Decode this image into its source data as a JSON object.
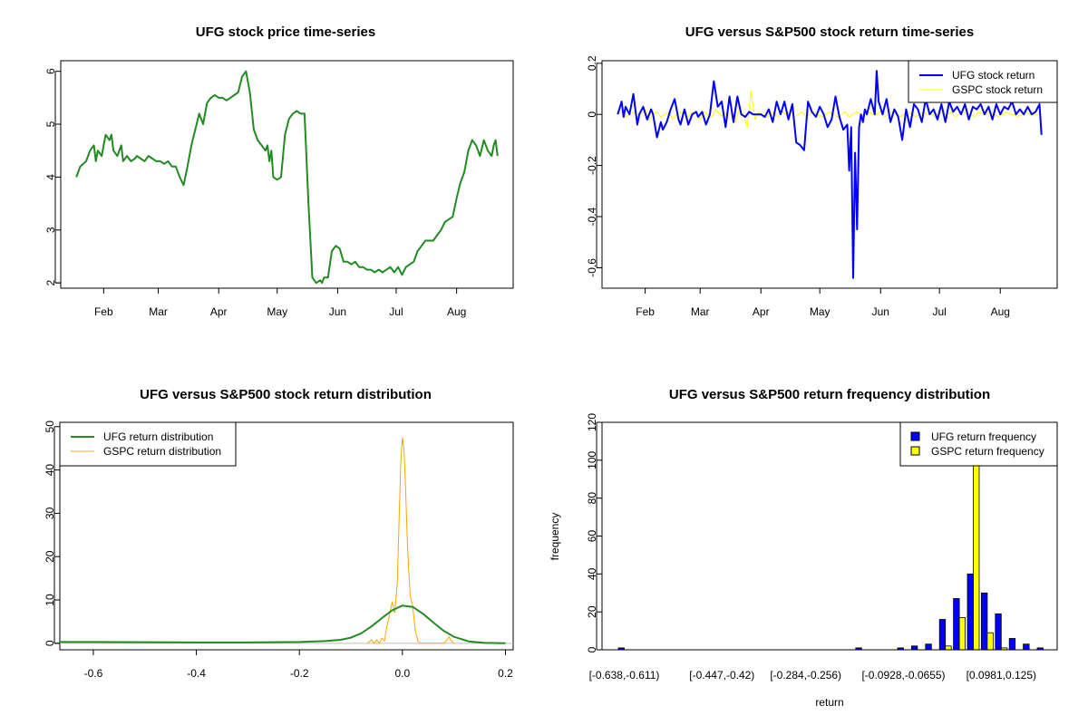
{
  "chart_data": [
    {
      "type": "line",
      "title": "UFG stock price time-series",
      "xlabel": "",
      "ylabel": "",
      "x_ticks": [
        "Feb",
        "Mar",
        "Apr",
        "May",
        "Jun",
        "Jul",
        "Aug"
      ],
      "x_tick_days": [
        31,
        59,
        90,
        120,
        151,
        181,
        212
      ],
      "xlim": [
        9,
        241
      ],
      "ylim": [
        1.9,
        6.2
      ],
      "y_ticks": [
        2,
        3,
        4,
        5,
        6
      ],
      "series": [
        {
          "name": "UFG",
          "color": "#228b22",
          "x": [
            17,
            19,
            22,
            24,
            26,
            27,
            28,
            30,
            32,
            34,
            35,
            36,
            38,
            40,
            41,
            43,
            45,
            47,
            48,
            50,
            52,
            54,
            56,
            58,
            60,
            62,
            64,
            66,
            68,
            70,
            72,
            74,
            76,
            78,
            80,
            82,
            84,
            86,
            88,
            90,
            92,
            94,
            96,
            98,
            100,
            102,
            104,
            106,
            108,
            110,
            112,
            114,
            115,
            116,
            117,
            118,
            120,
            122,
            124,
            126,
            128,
            130,
            132,
            134,
            136,
            138,
            140,
            142,
            143,
            144,
            146,
            148,
            150,
            152,
            154,
            156,
            158,
            160,
            162,
            164,
            166,
            168,
            170,
            172,
            174,
            176,
            178,
            180,
            182,
            184,
            186,
            188,
            190,
            192,
            194,
            196,
            198,
            200,
            202,
            204,
            206,
            208,
            210,
            212,
            214,
            216,
            218,
            220,
            222,
            224,
            226,
            228,
            230,
            231,
            232,
            233
          ],
          "y": [
            4.0,
            4.2,
            4.3,
            4.5,
            4.6,
            4.3,
            4.5,
            4.4,
            4.8,
            4.7,
            4.8,
            4.5,
            4.4,
            4.6,
            4.3,
            4.4,
            4.3,
            4.35,
            4.4,
            4.35,
            4.3,
            4.4,
            4.35,
            4.3,
            4.3,
            4.25,
            4.3,
            4.2,
            4.2,
            4.0,
            3.85,
            4.2,
            4.6,
            4.9,
            5.2,
            5.0,
            5.4,
            5.5,
            5.55,
            5.5,
            5.5,
            5.45,
            5.5,
            5.55,
            5.6,
            5.9,
            6.0,
            5.6,
            4.9,
            4.7,
            4.6,
            4.5,
            4.6,
            4.3,
            4.5,
            4.0,
            3.95,
            4.0,
            4.8,
            5.1,
            5.2,
            5.25,
            5.2,
            5.2,
            3.5,
            2.1,
            2.0,
            2.05,
            2.0,
            2.1,
            2.1,
            2.6,
            2.7,
            2.65,
            2.4,
            2.4,
            2.35,
            2.4,
            2.3,
            2.3,
            2.25,
            2.25,
            2.2,
            2.25,
            2.2,
            2.25,
            2.3,
            2.2,
            2.3,
            2.15,
            2.3,
            2.35,
            2.4,
            2.6,
            2.7,
            2.8,
            2.8,
            2.8,
            2.9,
            3.0,
            3.15,
            3.2,
            3.25,
            3.6,
            3.9,
            4.1,
            4.5,
            4.7,
            4.6,
            4.4,
            4.7,
            4.5,
            4.4,
            4.6,
            4.7,
            4.4
          ]
        }
      ]
    },
    {
      "type": "line",
      "title": "UFG versus S&P500 stock return time-series",
      "xlabel": "",
      "ylabel": "",
      "x_ticks": [
        "Feb",
        "Mar",
        "Apr",
        "May",
        "Jun",
        "Jul",
        "Aug"
      ],
      "x_tick_days": [
        31,
        59,
        90,
        120,
        151,
        181,
        212
      ],
      "xlim": [
        9,
        241
      ],
      "ylim": [
        -0.68,
        0.21
      ],
      "y_ticks": [
        -0.6,
        -0.4,
        -0.2,
        0.0,
        0.2
      ],
      "legend": [
        "UFG stock return",
        "GSPC stock return"
      ],
      "series": [
        {
          "name": "UFG stock return",
          "color": "#0000ff",
          "x": [
            17,
            19,
            20,
            21,
            23,
            25,
            27,
            28,
            30,
            32,
            34,
            35,
            37,
            39,
            40,
            42,
            44,
            46,
            48,
            49,
            51,
            53,
            55,
            57,
            58,
            60,
            62,
            64,
            66,
            68,
            70,
            72,
            74,
            76,
            78,
            80,
            82,
            84,
            86,
            88,
            90,
            92,
            94,
            96,
            98,
            100,
            102,
            104,
            106,
            108,
            110,
            112,
            114,
            116,
            118,
            120,
            122,
            124,
            126,
            128,
            130,
            132,
            134,
            135,
            136,
            137,
            138,
            139,
            140,
            141,
            142,
            143,
            144,
            146,
            148,
            149,
            150,
            152,
            154,
            156,
            158,
            160,
            162,
            164,
            166,
            168,
            170,
            172,
            174,
            176,
            178,
            180,
            182,
            184,
            186,
            188,
            190,
            192,
            194,
            196,
            198,
            200,
            202,
            204,
            206,
            208,
            210,
            212,
            214,
            216,
            218,
            220,
            222,
            224,
            226,
            228,
            230,
            232,
            233
          ],
          "y": [
            0.0,
            0.05,
            -0.01,
            0.03,
            0.0,
            0.08,
            -0.04,
            0.0,
            0.03,
            -0.02,
            0.02,
            0.0,
            -0.09,
            -0.03,
            -0.06,
            -0.03,
            0.02,
            0.06,
            -0.02,
            -0.04,
            0.02,
            -0.04,
            0.0,
            0.01,
            -0.01,
            0.01,
            -0.04,
            0.0,
            0.13,
            0.03,
            0.05,
            -0.05,
            0.07,
            -0.03,
            0.07,
            0.0,
            -0.01,
            0.01,
            0.0,
            0.0,
            0.0,
            -0.01,
            0.02,
            -0.03,
            0.05,
            0.0,
            0.05,
            -0.02,
            0.04,
            -0.11,
            -0.12,
            -0.14,
            0.05,
            0.01,
            -0.01,
            0.03,
            0.0,
            -0.05,
            -0.02,
            0.07,
            -0.01,
            -0.06,
            -0.04,
            -0.22,
            -0.05,
            -0.64,
            -0.15,
            -0.45,
            -0.05,
            0.0,
            -0.03,
            0.02,
            0.0,
            0.06,
            0.0,
            0.17,
            0.05,
            0.0,
            0.06,
            -0.03,
            0.02,
            -0.01,
            -0.1,
            0.02,
            -0.05,
            0.04,
            0.02,
            -0.03,
            0.06,
            0.0,
            0.02,
            -0.02,
            0.04,
            -0.03,
            0.05,
            0.01,
            0.03,
            0.0,
            0.04,
            -0.02,
            0.03,
            0.02,
            0.04,
            0.0,
            0.03,
            -0.02,
            0.04,
            0.0,
            0.03,
            0.02,
            0.05,
            0.0,
            0.02,
            0.0,
            0.03,
            0.0,
            0.01,
            0.04,
            -0.08
          ]
        },
        {
          "name": "GSPC stock return",
          "color": "#ffff00",
          "x": [
            17,
            19,
            21,
            23,
            25,
            27,
            29,
            31,
            33,
            35,
            37,
            39,
            41,
            43,
            45,
            47,
            49,
            51,
            53,
            55,
            57,
            59,
            61,
            63,
            65,
            67,
            69,
            71,
            73,
            75,
            77,
            79,
            81,
            83,
            85,
            87,
            89,
            91,
            93,
            95,
            97,
            99,
            101,
            103,
            105,
            107,
            109,
            111,
            113,
            115,
            117,
            119,
            121,
            123,
            125,
            127,
            129,
            131,
            133,
            135,
            137,
            139,
            141,
            143,
            145,
            147,
            149,
            151,
            153,
            155,
            157,
            159,
            161,
            163,
            165,
            167,
            169,
            171,
            173,
            175,
            177,
            179,
            181,
            183,
            185,
            187,
            189,
            191,
            193,
            195,
            197,
            199,
            201,
            203,
            205,
            207,
            209,
            211,
            213,
            215,
            217,
            219,
            221,
            223,
            225,
            227,
            229,
            231,
            233
          ],
          "y": [
            0.0,
            0.01,
            -0.01,
            0.0,
            0.01,
            -0.01,
            0.0,
            0.02,
            -0.02,
            0.0,
            0.01,
            -0.01,
            0.0,
            0.01,
            -0.02,
            0.0,
            0.01,
            0.0,
            -0.01,
            0.01,
            0.0,
            -0.02,
            0.01,
            0.0,
            -0.01,
            0.02,
            0.0,
            -0.01,
            0.01,
            0.0,
            -0.03,
            0.02,
            0.0,
            -0.05,
            0.09,
            -0.02,
            0.01,
            0.0,
            -0.01,
            0.01,
            0.0,
            -0.01,
            0.01,
            0.0,
            0.01,
            -0.01,
            0.0,
            0.01,
            -0.01,
            0.0,
            0.01,
            0.0,
            -0.01,
            0.0,
            0.01,
            0.0,
            -0.01,
            0.0,
            0.01,
            -0.01,
            0.0,
            0.01,
            0.0,
            -0.01,
            0.01,
            0.0,
            0.0,
            0.01,
            -0.01,
            0.0,
            0.01,
            0.0,
            -0.01,
            0.0,
            0.01,
            0.0,
            -0.01,
            0.0,
            0.01,
            0.0,
            0.0,
            -0.01,
            0.01,
            0.0,
            0.0,
            0.01,
            -0.01,
            0.0,
            0.01,
            0.0,
            0.0,
            -0.01,
            0.01,
            0.0,
            0.0,
            0.01,
            0.0,
            -0.01,
            0.0,
            0.01,
            0.0,
            0.0,
            -0.01,
            0.0,
            0.01,
            0.0,
            0.0,
            0.0,
            0.0
          ]
        }
      ]
    },
    {
      "type": "line",
      "title": "UFG versus S&P500 stock return distribution",
      "xlabel": "",
      "ylabel": "",
      "xlim": [
        -0.665,
        0.215
      ],
      "ylim": [
        -1.5,
        51
      ],
      "x_ticks": [
        -0.6,
        -0.4,
        -0.2,
        0.0,
        0.2
      ],
      "x_tick_labels": [
        "-0.6",
        "-0.4",
        "-0.2",
        "0.0",
        "0.2"
      ],
      "y_ticks": [
        0,
        10,
        20,
        30,
        40,
        50
      ],
      "legend": [
        "UFG return distribution",
        "GSPC return distribution"
      ],
      "series": [
        {
          "name": "UFG return distribution",
          "color": "#228b22",
          "x": [
            -0.665,
            -0.6,
            -0.5,
            -0.4,
            -0.3,
            -0.2,
            -0.15,
            -0.12,
            -0.1,
            -0.08,
            -0.06,
            -0.04,
            -0.02,
            0.0,
            0.02,
            0.04,
            0.06,
            0.08,
            0.1,
            0.13,
            0.16,
            0.2
          ],
          "y": [
            0.3,
            0.3,
            0.25,
            0.2,
            0.2,
            0.3,
            0.5,
            0.8,
            1.3,
            2.3,
            3.9,
            5.8,
            7.6,
            8.7,
            8.4,
            6.8,
            4.8,
            2.9,
            1.5,
            0.4,
            0.1,
            0.0
          ]
        },
        {
          "name": "GSPC return distribution",
          "color": "#ffa500",
          "x": [
            -0.068,
            -0.06,
            -0.055,
            -0.05,
            -0.045,
            -0.04,
            -0.035,
            -0.03,
            -0.025,
            -0.02,
            -0.015,
            -0.01,
            -0.006,
            -0.003,
            0.0,
            0.003,
            0.006,
            0.01,
            0.015,
            0.02,
            0.025,
            0.03,
            0.035,
            0.04,
            0.08,
            0.085,
            0.09,
            0.095,
            0.1
          ],
          "y": [
            0.0,
            0.8,
            0.0,
            0.8,
            0.0,
            1.2,
            0.5,
            4.0,
            6.5,
            9.5,
            7.0,
            14.0,
            30.0,
            42.0,
            47.5,
            45.0,
            36.0,
            22.0,
            11.0,
            8.5,
            3.0,
            0.5,
            0.0,
            0.0,
            0.0,
            0.6,
            1.5,
            0.6,
            0.0
          ]
        }
      ]
    },
    {
      "type": "bar",
      "title": "UFG versus S&P500 return frequency distribution",
      "xlabel": "return",
      "ylabel": "frequency",
      "ylim": [
        0,
        120
      ],
      "y_ticks": [
        0,
        20,
        40,
        60,
        80,
        100,
        120
      ],
      "x_tick_labels": [
        "[-0.638,-0.611)",
        "[-0.447,-0.42)",
        "[-0.284,-0.256)",
        "[-0.0928,-0.0655)",
        "[0.0981,0.125)"
      ],
      "x_tick_bins": [
        0,
        7,
        13,
        20,
        27
      ],
      "legend": [
        "UFG return frequency",
        "GSPC return frequency"
      ],
      "series": [
        {
          "name": "UFG return frequency",
          "color": "#0000ff",
          "values": [
            1,
            0,
            0,
            0,
            0,
            0,
            0,
            0,
            0,
            0,
            0,
            0,
            0,
            0,
            0,
            0,
            0,
            1,
            0,
            0,
            1,
            2,
            3,
            16,
            27,
            40,
            30,
            19,
            6,
            3,
            1,
            0
          ]
        },
        {
          "name": "GSPC return frequency",
          "color": "#ffff00",
          "values": [
            0,
            0,
            0,
            0,
            0,
            0,
            0,
            0,
            0,
            0,
            0,
            0,
            0,
            0,
            0,
            0,
            0,
            0,
            0,
            0,
            0,
            0,
            0,
            2,
            17,
            100,
            9,
            1,
            0,
            0,
            0,
            0
          ]
        }
      ]
    }
  ]
}
